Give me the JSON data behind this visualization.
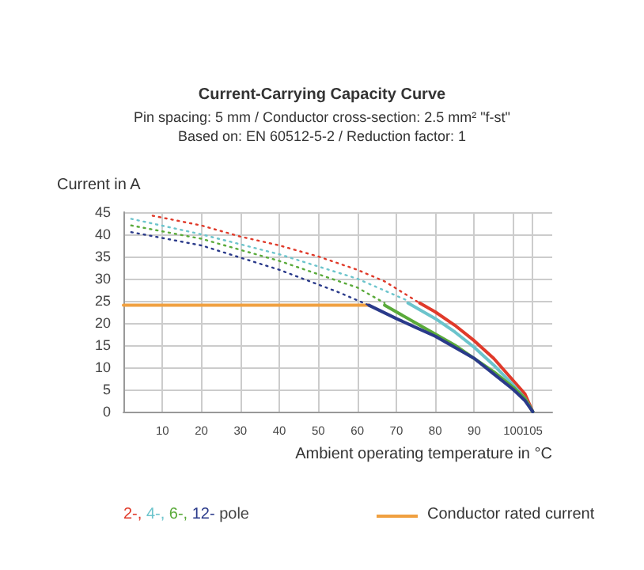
{
  "chart_data": {
    "type": "line",
    "title": "Current-Carrying Capacity Curve",
    "subtitle": "Pin spacing: 5 mm / Conductor cross-section: 2.5 mm² \"f-st\"\nBased on: EN 60512-5-2 / Reduction factor: 1",
    "xlabel": "Ambient operating temperature in °C",
    "ylabel": "Current in A",
    "legend_title": "pole",
    "xlim": [
      0,
      110
    ],
    "xticks": [
      10,
      20,
      30,
      40,
      50,
      60,
      70,
      80,
      90,
      100,
      105
    ],
    "ylim": [
      0,
      45
    ],
    "yticks": [
      0,
      5,
      10,
      15,
      20,
      25,
      30,
      35,
      40,
      45
    ],
    "grid": true,
    "legend": "bottom",
    "marker": "none",
    "series": [
      {
        "color": "#e03a2a",
        "line_style": "dotted",
        "x": [
          7.5,
          20,
          30,
          40,
          50,
          60,
          67,
          76
        ],
        "values": [
          44.2,
          42,
          39.5,
          37.5,
          35,
          32,
          29.4,
          24.5
        ]
      },
      {
        "color": "#6cc4cc",
        "line_style": "dotted",
        "x": [
          2,
          20,
          40,
          60,
          73
        ],
        "values": [
          43.5,
          40,
          35.5,
          30,
          25
        ]
      },
      {
        "color": "#5aaa3a",
        "line_style": "dotted",
        "x": [
          2,
          20,
          40,
          60,
          67
        ],
        "values": [
          42,
          39,
          34,
          28,
          24.5
        ]
      },
      {
        "color": "#2a3a8a",
        "line_style": "dotted",
        "x": [
          2,
          20,
          40,
          55,
          63
        ],
        "values": [
          40.5,
          37.5,
          32,
          27,
          24
        ]
      },
      {
        "name": "2-,",
        "color": "#e03a2a",
        "line_style": "solid",
        "x": [
          76,
          80,
          85,
          90,
          95,
          100,
          103,
          104.5,
          105
        ],
        "values": [
          24.5,
          22.5,
          19.5,
          16,
          12,
          7,
          4,
          1,
          0
        ]
      },
      {
        "name": "4-,",
        "color": "#6cc4cc",
        "line_style": "solid",
        "x": [
          73,
          80,
          85,
          90,
          95,
          100,
          103,
          105
        ],
        "values": [
          24.5,
          21,
          18,
          14.5,
          10.5,
          6,
          3,
          0
        ]
      },
      {
        "name": "6-,",
        "color": "#5aaa3a",
        "line_style": "solid",
        "x": [
          67,
          75,
          80,
          85,
          90,
          95,
          100,
          103,
          105
        ],
        "values": [
          24,
          20,
          17.5,
          15,
          12,
          9,
          5.5,
          3,
          0
        ]
      },
      {
        "name": "12-",
        "color": "#2a3a8a",
        "line_style": "solid",
        "x": [
          63,
          70,
          75,
          80,
          85,
          90,
          95,
          100,
          103,
          105
        ],
        "values": [
          24,
          21,
          19,
          17,
          14.5,
          12,
          8.5,
          5,
          2.5,
          0
        ]
      },
      {
        "name": "Conductor rated current",
        "color": "#f0a040",
        "line_style": "solid",
        "x": [
          0,
          63
        ],
        "values": [
          24,
          24
        ]
      }
    ]
  }
}
